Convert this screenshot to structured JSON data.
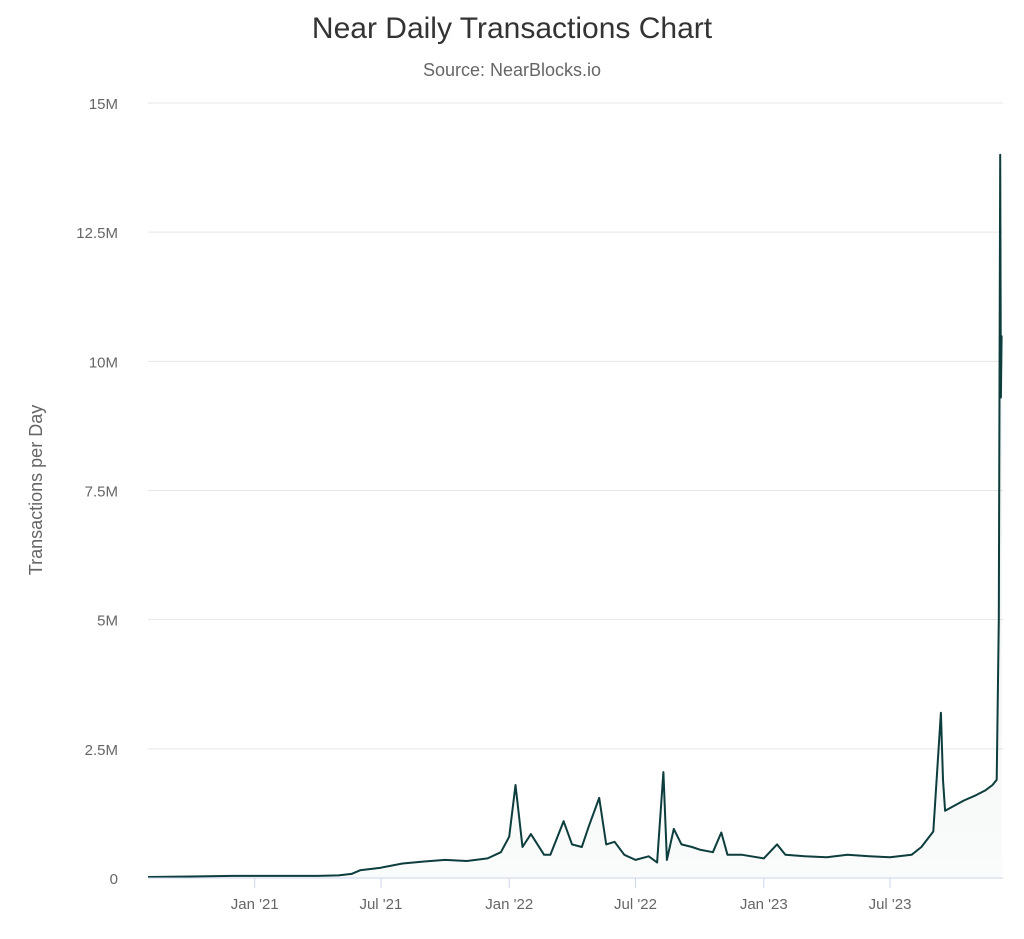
{
  "chart_data": {
    "type": "line",
    "title": "Near Daily Transactions Chart",
    "subtitle": "Source: NearBlocks.io",
    "ylabel": "Transactions per Day",
    "xlabel": "",
    "xlim": [
      "2020-08-01",
      "2023-12-10"
    ],
    "ylim": [
      0,
      15000000
    ],
    "y_ticks": [
      0,
      2500000,
      5000000,
      7500000,
      10000000,
      12500000,
      15000000
    ],
    "y_tick_labels": [
      "0",
      "2.5M",
      "5M",
      "7.5M",
      "10M",
      "12.5M",
      "15M"
    ],
    "x_ticks": [
      "2021-01-01",
      "2021-07-01",
      "2022-01-01",
      "2022-07-01",
      "2023-01-01",
      "2023-07-01"
    ],
    "x_tick_labels": [
      "Jan '21",
      "Jul '21",
      "Jan '22",
      "Jul '22",
      "Jan '23",
      "Jul '23"
    ],
    "grid": true,
    "legend": "none",
    "colors": {
      "line": "#0d3d3d",
      "grid": "#e6e6e6",
      "axis": "#ccd6eb"
    },
    "series": [
      {
        "x": [
          "2020-08-01",
          "2020-10-01",
          "2020-12-01",
          "2021-01-01",
          "2021-02-01",
          "2021-03-01",
          "2021-04-01",
          "2021-05-01",
          "2021-05-20",
          "2021-06-01",
          "2021-07-01",
          "2021-08-01",
          "2021-09-01",
          "2021-10-01",
          "2021-11-01",
          "2021-12-01",
          "2021-12-20",
          "2022-01-01",
          "2022-01-10",
          "2022-01-20",
          "2022-02-01",
          "2022-02-20",
          "2022-03-01",
          "2022-03-20",
          "2022-04-01",
          "2022-04-15",
          "2022-04-25",
          "2022-05-10",
          "2022-05-20",
          "2022-06-01",
          "2022-06-15",
          "2022-07-01",
          "2022-07-20",
          "2022-08-01",
          "2022-08-10",
          "2022-08-15",
          "2022-08-25",
          "2022-09-05",
          "2022-09-20",
          "2022-10-01",
          "2022-10-20",
          "2022-11-01",
          "2022-11-10",
          "2022-12-01",
          "2023-01-01",
          "2023-01-20",
          "2023-02-01",
          "2023-03-01",
          "2023-04-01",
          "2023-05-01",
          "2023-06-01",
          "2023-07-01",
          "2023-08-01",
          "2023-08-15",
          "2023-09-01",
          "2023-09-12",
          "2023-09-15",
          "2023-09-18",
          "2023-10-01",
          "2023-10-15",
          "2023-11-01",
          "2023-11-15",
          "2023-11-25",
          "2023-12-01",
          "2023-12-04",
          "2023-12-06",
          "2023-12-07",
          "2023-12-08"
        ],
        "y": [
          20000,
          30000,
          40000,
          40000,
          40000,
          40000,
          40000,
          50000,
          80000,
          150000,
          200000,
          280000,
          320000,
          350000,
          330000,
          380000,
          500000,
          800000,
          1800000,
          600000,
          850000,
          450000,
          450000,
          1100000,
          650000,
          600000,
          1000000,
          1550000,
          650000,
          700000,
          450000,
          350000,
          420000,
          300000,
          2050000,
          350000,
          950000,
          650000,
          600000,
          550000,
          500000,
          880000,
          450000,
          450000,
          380000,
          650000,
          450000,
          420000,
          400000,
          450000,
          420000,
          400000,
          450000,
          600000,
          900000,
          3200000,
          1900000,
          1300000,
          1400000,
          1500000,
          1600000,
          1700000,
          1800000,
          1900000,
          5000000,
          14000000,
          9300000,
          10500000
        ]
      }
    ]
  }
}
